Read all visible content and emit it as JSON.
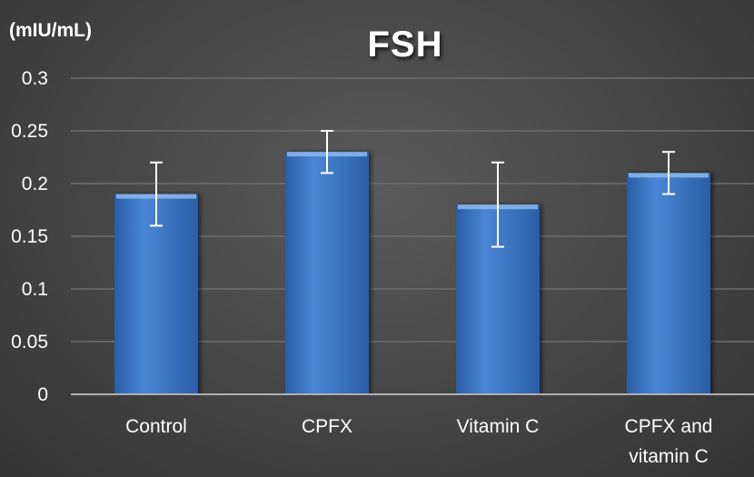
{
  "chart_data": {
    "type": "bar",
    "title": "FSH",
    "unit_label": "(mIU/mL)",
    "categories": [
      [
        "Control"
      ],
      [
        "CPFX"
      ],
      [
        "Vitamin C"
      ],
      [
        "CPFX and",
        "vitamin C"
      ]
    ],
    "values": [
      0.19,
      0.23,
      0.18,
      0.21
    ],
    "errors": [
      {
        "low": 0.16,
        "high": 0.22
      },
      {
        "low": 0.21,
        "high": 0.25
      },
      {
        "low": 0.14,
        "high": 0.22
      },
      {
        "low": 0.19,
        "high": 0.23
      }
    ],
    "yticks": [
      "0",
      "0.05",
      "0.1",
      "0.15",
      "0.2",
      "0.25",
      "0.3"
    ],
    "ylim": [
      0,
      0.3
    ],
    "grid": true,
    "colors": {
      "bar": "#4a86d4",
      "bar_light": "#8cb8ee",
      "bar_dark": "#2a5ea8",
      "grid": "#6e6e6e",
      "axis": "#b0b0b0",
      "error_bar": "#ffffff"
    }
  }
}
